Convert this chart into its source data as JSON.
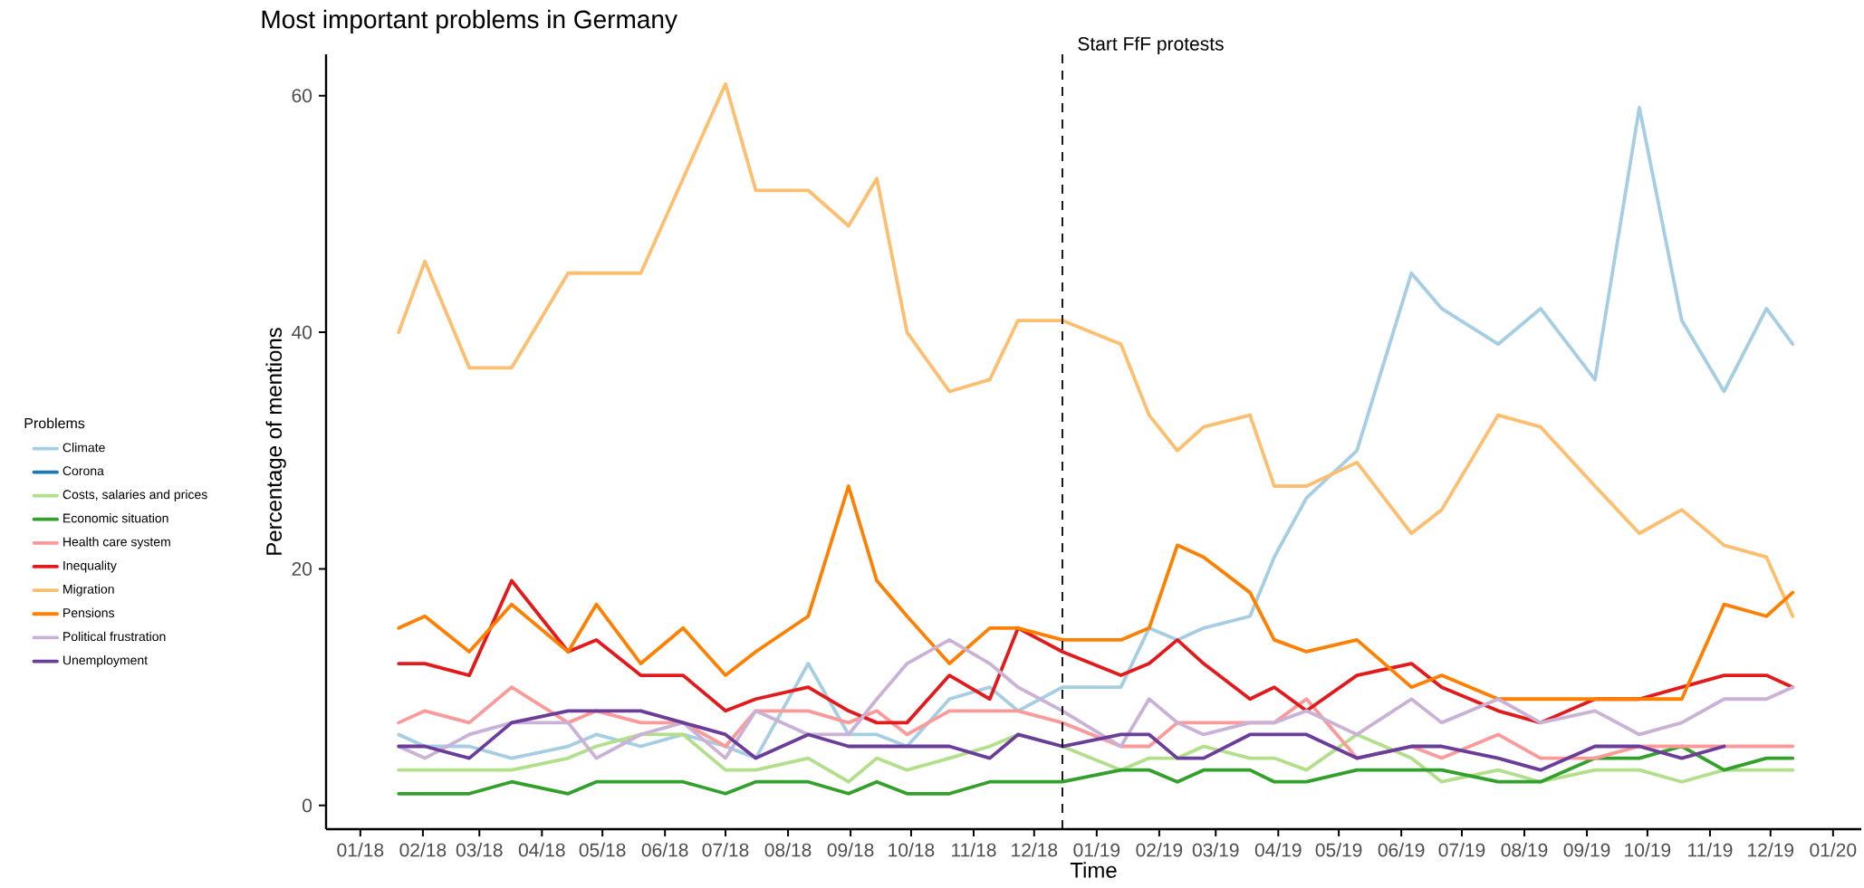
{
  "chart_data": {
    "type": "line",
    "title": "Most important problems in Germany",
    "xlabel": "Time",
    "ylabel": "Percentage of mentions",
    "legend_title": "Problems",
    "legend": "left",
    "x": [
      "2018-01-20",
      "2018-02-02",
      "2018-02-24",
      "2018-03-17",
      "2018-04-14",
      "2018-04-28",
      "2018-05-20",
      "2018-06-10",
      "2018-07-01",
      "2018-07-16",
      "2018-08-11",
      "2018-08-31",
      "2018-09-14",
      "2018-09-29",
      "2018-10-20",
      "2018-11-09",
      "2018-11-23",
      "2018-12-15",
      "2019-01-13",
      "2019-01-27",
      "2019-02-10",
      "2019-02-23",
      "2019-03-18",
      "2019-03-30",
      "2019-04-15",
      "2019-05-10",
      "2019-06-06",
      "2019-06-21",
      "2019-07-19",
      "2019-08-09",
      "2019-09-05",
      "2019-09-27",
      "2019-10-18",
      "2019-11-08",
      "2019-11-29",
      "2019-12-12"
    ],
    "xlim": [
      "2017-12-15",
      "2020-01-15"
    ],
    "xticks": [
      {
        "value": "2018-01",
        "label": "01/18"
      },
      {
        "value": "2018-02",
        "label": "02/18"
      },
      {
        "value": "2018-03",
        "label": "03/18"
      },
      {
        "value": "2018-04",
        "label": "04/18"
      },
      {
        "value": "2018-05",
        "label": "05/18"
      },
      {
        "value": "2018-06",
        "label": "06/18"
      },
      {
        "value": "2018-07",
        "label": "07/18"
      },
      {
        "value": "2018-08",
        "label": "08/18"
      },
      {
        "value": "2018-09",
        "label": "09/18"
      },
      {
        "value": "2018-10",
        "label": "10/18"
      },
      {
        "value": "2018-11",
        "label": "11/18"
      },
      {
        "value": "2018-12",
        "label": "12/18"
      },
      {
        "value": "2019-01",
        "label": "01/19"
      },
      {
        "value": "2019-02",
        "label": "02/19"
      },
      {
        "value": "2019-03",
        "label": "03/19"
      },
      {
        "value": "2019-04",
        "label": "04/19"
      },
      {
        "value": "2019-05",
        "label": "05/19"
      },
      {
        "value": "2019-06",
        "label": "06/19"
      },
      {
        "value": "2019-07",
        "label": "07/19"
      },
      {
        "value": "2019-08",
        "label": "08/19"
      },
      {
        "value": "2019-09",
        "label": "09/19"
      },
      {
        "value": "2019-10",
        "label": "10/19"
      },
      {
        "value": "2019-11",
        "label": "11/19"
      },
      {
        "value": "2019-12",
        "label": "12/19"
      },
      {
        "value": "2020-01",
        "label": "01/20"
      }
    ],
    "ylim": [
      -2,
      63.5
    ],
    "yticks": [
      0,
      20,
      40,
      60
    ],
    "ref_lines": [
      {
        "axis": "x",
        "value": "2018-12-15",
        "label": "Start FfF protests",
        "line_style": "dashed",
        "color": "#000000"
      }
    ],
    "series": [
      {
        "name": "Climate",
        "color": "#a6cee3",
        "values": [
          6,
          5,
          5,
          4,
          5,
          6,
          5,
          6,
          5,
          4,
          12,
          6,
          6,
          5,
          9,
          10,
          8,
          10,
          10,
          15,
          14,
          15,
          16,
          21,
          26,
          30,
          45,
          42,
          39,
          42,
          36,
          59,
          41,
          35,
          42,
          39
        ]
      },
      {
        "name": "Corona",
        "color": "#1f78b4",
        "values": [
          null,
          null,
          null,
          null,
          null,
          null,
          null,
          null,
          null,
          null,
          null,
          null,
          null,
          null,
          null,
          null,
          null,
          null,
          null,
          null,
          null,
          null,
          null,
          null,
          null,
          null,
          null,
          null,
          null,
          null,
          null,
          null,
          null,
          null,
          null,
          null
        ]
      },
      {
        "name": "Costs, salaries and prices",
        "color": "#b2df8a",
        "values": [
          3,
          3,
          3,
          3,
          4,
          5,
          6,
          6,
          3,
          3,
          4,
          2,
          4,
          3,
          4,
          5,
          6,
          5,
          3,
          4,
          4,
          5,
          4,
          4,
          3,
          6,
          4,
          2,
          3,
          2,
          3,
          3,
          2,
          3,
          3,
          3
        ]
      },
      {
        "name": "Economic situation",
        "color": "#33a02c",
        "values": [
          1,
          1,
          1,
          2,
          1,
          2,
          2,
          2,
          1,
          2,
          2,
          1,
          2,
          1,
          1,
          2,
          2,
          2,
          3,
          3,
          2,
          3,
          3,
          2,
          2,
          3,
          3,
          3,
          2,
          2,
          4,
          4,
          5,
          3,
          4,
          4
        ]
      },
      {
        "name": "Health care system",
        "color": "#fb9a99",
        "values": [
          7,
          8,
          7,
          10,
          7,
          8,
          7,
          7,
          5,
          8,
          8,
          7,
          8,
          6,
          8,
          8,
          8,
          7,
          5,
          5,
          7,
          7,
          7,
          7,
          9,
          4,
          5,
          4,
          6,
          4,
          4,
          5,
          5,
          5,
          5,
          5
        ]
      },
      {
        "name": "Inequality",
        "color": "#e31a1c",
        "values": [
          12,
          12,
          11,
          19,
          13,
          14,
          11,
          11,
          8,
          9,
          10,
          8,
          7,
          7,
          11,
          9,
          15,
          13,
          11,
          12,
          14,
          12,
          9,
          10,
          8,
          11,
          12,
          10,
          8,
          7,
          9,
          9,
          10,
          11,
          11,
          10
        ]
      },
      {
        "name": "Migration",
        "color": "#fdbf6f",
        "values": [
          40,
          46,
          37,
          37,
          45,
          45,
          45,
          53,
          61,
          52,
          52,
          49,
          53,
          40,
          35,
          36,
          41,
          41,
          39,
          33,
          30,
          32,
          33,
          27,
          27,
          29,
          23,
          25,
          33,
          32,
          27,
          23,
          25,
          22,
          21,
          16
        ]
      },
      {
        "name": "Pensions",
        "color": "#ff7f00",
        "values": [
          15,
          16,
          13,
          17,
          13,
          17,
          12,
          15,
          11,
          13,
          16,
          27,
          19,
          16,
          12,
          15,
          15,
          14,
          14,
          15,
          22,
          21,
          18,
          14,
          13,
          14,
          10,
          11,
          9,
          9,
          9,
          9,
          9,
          17,
          16,
          18
        ]
      },
      {
        "name": "Political frustration",
        "color": "#cab2d6",
        "values": [
          5,
          4,
          6,
          7,
          7,
          4,
          6,
          7,
          4,
          8,
          6,
          6,
          9,
          12,
          14,
          12,
          10,
          8,
          5,
          9,
          7,
          6,
          7,
          7,
          8,
          6,
          9,
          7,
          9,
          7,
          8,
          6,
          7,
          9,
          9,
          10
        ]
      },
      {
        "name": "Unemployment",
        "color": "#6a3d9a",
        "values": [
          5,
          5,
          4,
          7,
          8,
          8,
          8,
          7,
          6,
          4,
          6,
          5,
          5,
          5,
          5,
          4,
          6,
          5,
          6,
          6,
          4,
          4,
          6,
          6,
          6,
          4,
          5,
          5,
          4,
          3,
          5,
          5,
          4,
          5,
          null,
          null
        ]
      }
    ]
  }
}
